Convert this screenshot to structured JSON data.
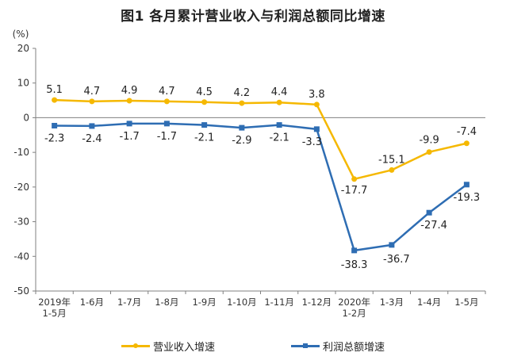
{
  "chart_data": {
    "type": "line",
    "title": "图1  各月累计营业收入与利润总额同比增速",
    "ylabel": "(%)",
    "ylim": [
      -50,
      20
    ],
    "yticks": [
      "20",
      "10",
      "0",
      "-10",
      "-20",
      "-30",
      "-40",
      "-50"
    ],
    "categories": [
      [
        "2019年",
        "1-5月"
      ],
      [
        "1-6月"
      ],
      [
        "1-7月"
      ],
      [
        "1-8月"
      ],
      [
        "1-9月"
      ],
      [
        "1-10月"
      ],
      [
        "1-11月"
      ],
      [
        "1-12月"
      ],
      [
        "2020年",
        "1-2月"
      ],
      [
        "1-3月"
      ],
      [
        "1-4月"
      ],
      [
        "1-5月"
      ]
    ],
    "series": [
      {
        "name": "营业收入增速",
        "color": "#f5b800",
        "marker": "circle",
        "values": [
          5.1,
          4.7,
          4.9,
          4.7,
          4.5,
          4.2,
          4.4,
          3.8,
          -17.7,
          -15.1,
          -9.9,
          -7.4
        ],
        "labels": [
          "5.1",
          "4.7",
          "4.9",
          "4.7",
          "4.5",
          "4.2",
          "4.4",
          "3.8",
          "-17.7",
          "-15.1",
          "-9.9",
          "-7.4"
        ]
      },
      {
        "name": "利润总额增速",
        "color": "#2e6db3",
        "marker": "square",
        "values": [
          -2.3,
          -2.4,
          -1.7,
          -1.7,
          -2.1,
          -2.9,
          -2.1,
          -3.3,
          -38.3,
          -36.7,
          -27.4,
          -19.3
        ],
        "labels": [
          "-2.3",
          "-2.4",
          "-1.7",
          "-1.7",
          "-2.1",
          "-2.9",
          "-2.1",
          "-3.3",
          "-38.3",
          "-36.7",
          "-27.4",
          "-19.3"
        ]
      }
    ],
    "legend_position": "bottom",
    "grid": false
  }
}
